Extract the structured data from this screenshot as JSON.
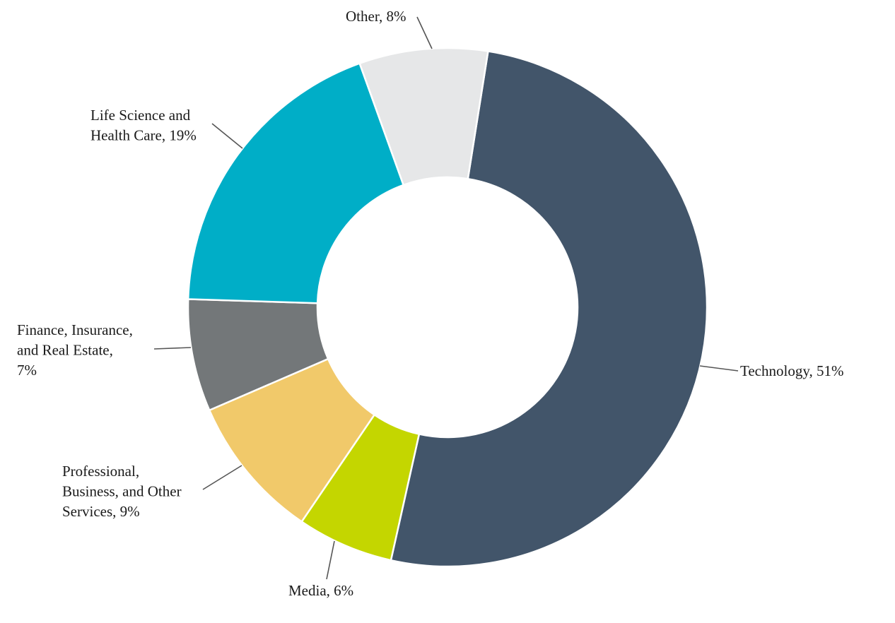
{
  "chart_data": {
    "type": "donut",
    "title": "",
    "slices": [
      {
        "label_lines": [
          "Technology, 51%"
        ],
        "value": 51,
        "color": "#42556a"
      },
      {
        "label_lines": [
          "Media, 6%"
        ],
        "value": 6,
        "color": "#c4d600"
      },
      {
        "label_lines": [
          "Professional,",
          "Business, and Other",
          "Services, 9%"
        ],
        "value": 9,
        "color": "#f1c96a"
      },
      {
        "label_lines": [
          "Finance, Insurance,",
          "and Real Estate,",
          "7%"
        ],
        "value": 7,
        "color": "#737779"
      },
      {
        "label_lines": [
          "Life Science and",
          "Health Care, 19%"
        ],
        "value": 19,
        "color": "#00aec7"
      },
      {
        "label_lines": [
          "Other, 8%"
        ],
        "value": 8,
        "color": "#e6e7e8"
      }
    ]
  }
}
